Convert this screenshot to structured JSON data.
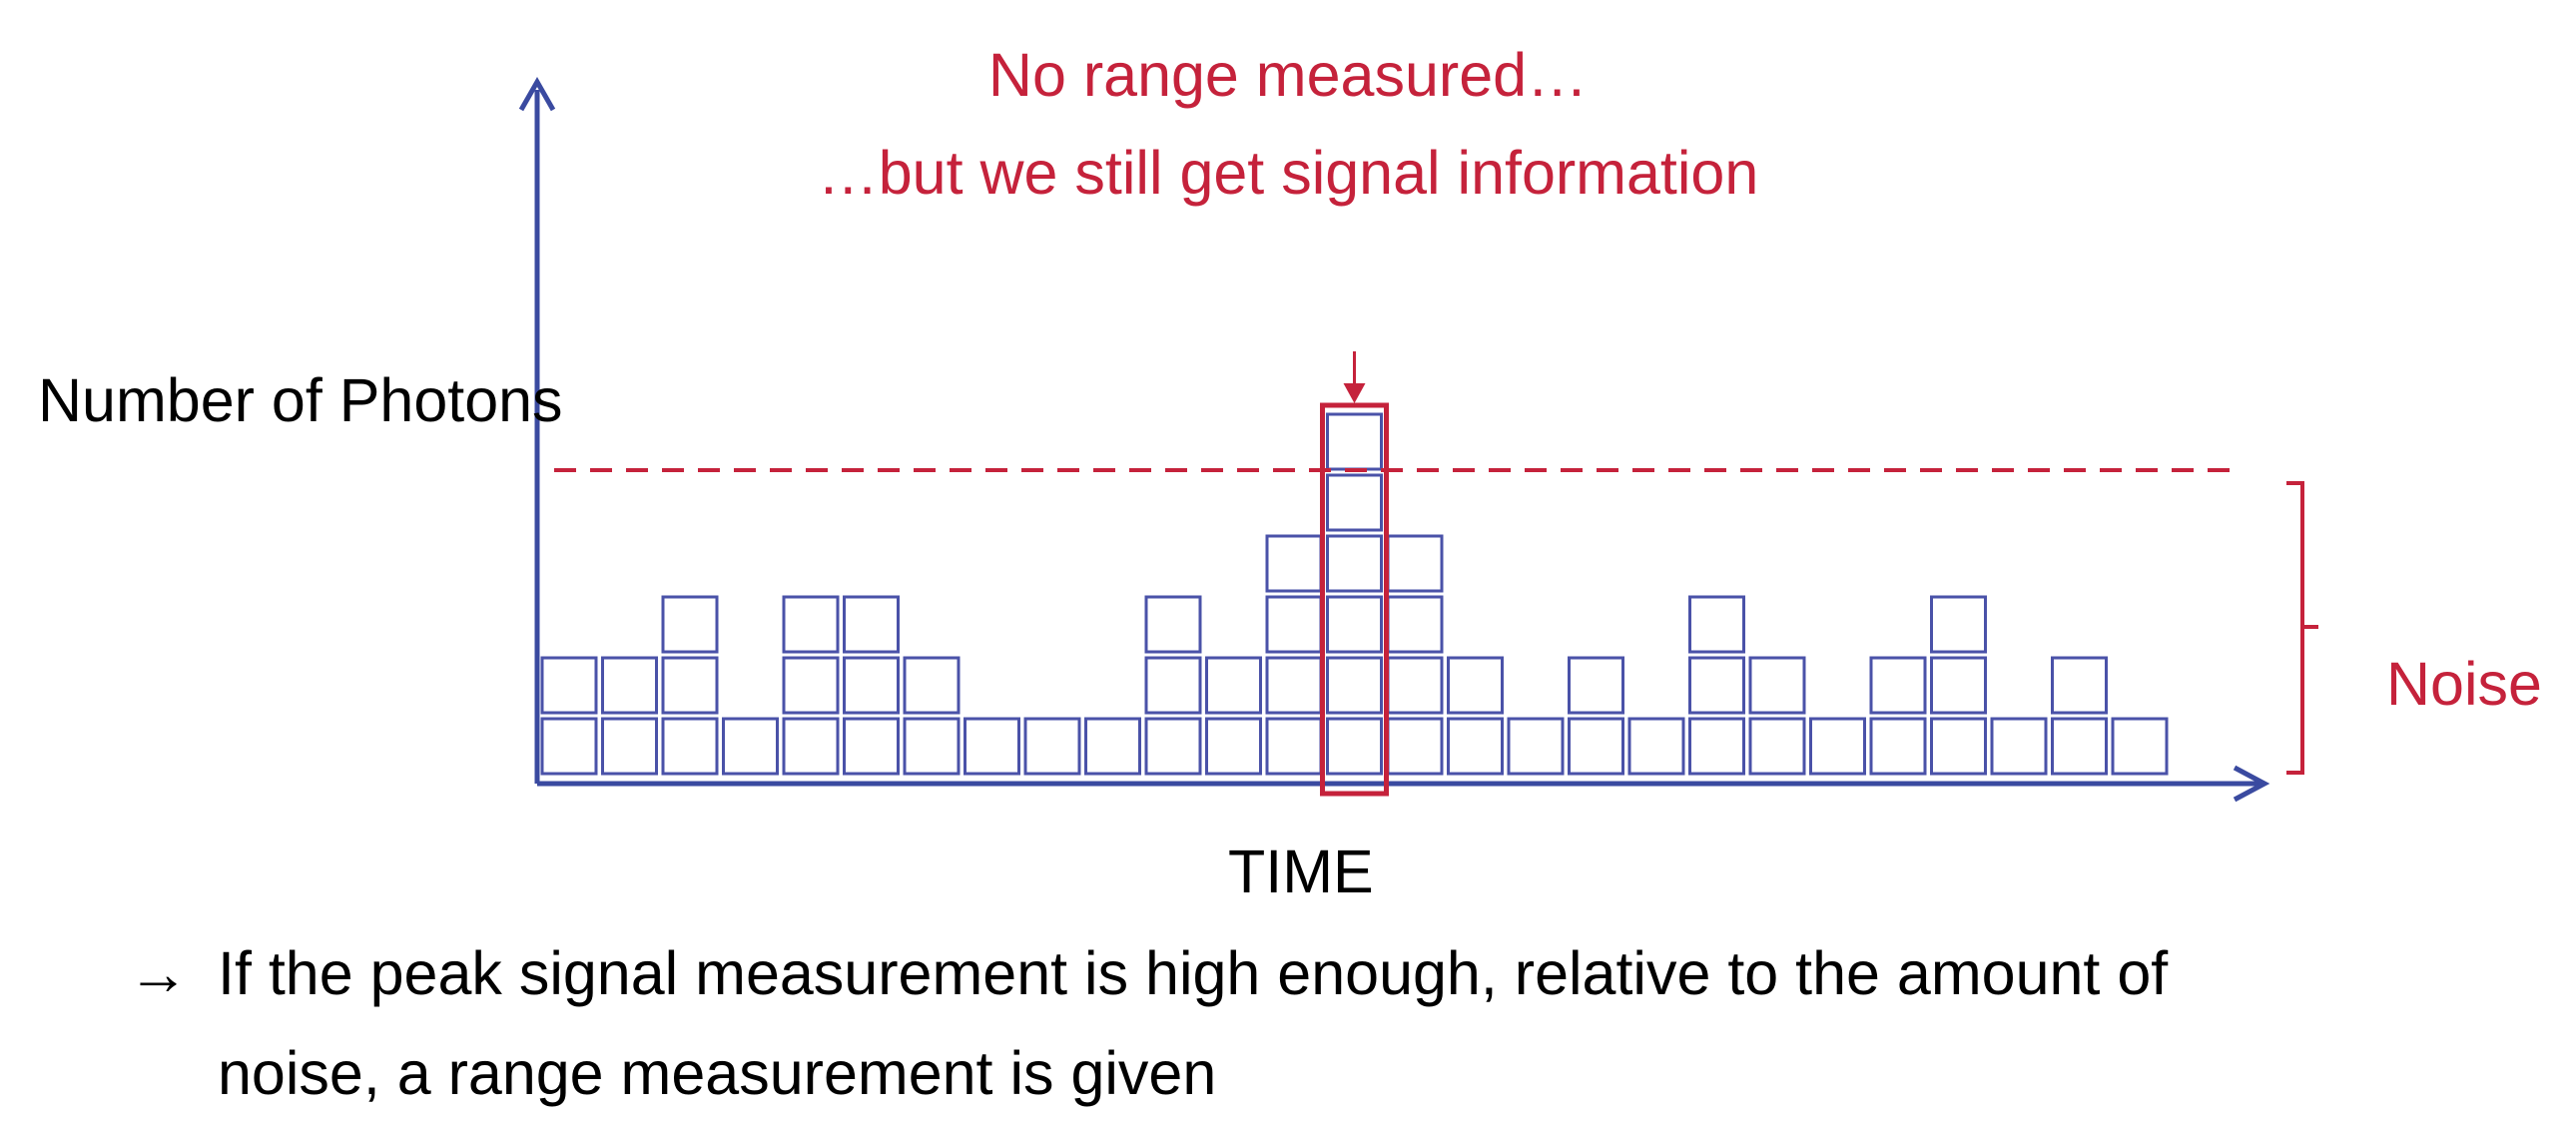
{
  "title": {
    "line1": "No range measured…",
    "line2": "…but we still get signal information"
  },
  "axes": {
    "ylabel": "Number of Photons",
    "xlabel": "TIME"
  },
  "noise_label": "Noise",
  "note": {
    "arrow": "→",
    "line1": "If the peak signal measurement is high enough, relative to the amount of",
    "line2": "noise, a range measurement is given"
  },
  "colors": {
    "axis": "#3a4aa0",
    "box": "#4a52a8",
    "highlight": "#c5223b"
  },
  "histogram": {
    "counts": [
      2,
      2,
      3,
      1,
      3,
      3,
      2,
      1,
      1,
      1,
      3,
      2,
      4,
      6,
      4,
      2,
      1,
      2,
      1,
      3,
      2,
      1,
      2,
      3,
      1,
      2,
      1
    ],
    "peak_index": 13
  }
}
